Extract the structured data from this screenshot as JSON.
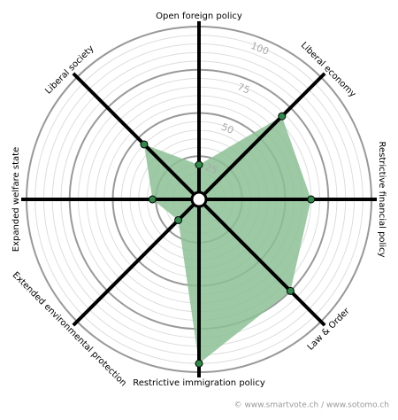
{
  "chart_data": {
    "type": "radar",
    "categories": [
      "Open foreign policy",
      "Liberal economy",
      "Restrictive financial policy",
      "Law & Order",
      "Restrictive immigration policy",
      "Extended environmental protection",
      "Expanded welfare state",
      "Liberal society"
    ],
    "values": [
      20,
      68,
      65,
      75,
      95,
      17,
      27,
      45
    ],
    "color": "#8cc195",
    "point_color": "#2f8a4a",
    "ylim": [
      0,
      100
    ],
    "yticks": [
      25,
      50,
      75,
      100
    ],
    "minor_ticks": [
      5,
      10,
      15,
      20,
      30,
      35,
      40,
      45,
      55,
      60,
      65,
      70,
      80,
      85,
      90,
      95
    ],
    "grid": true,
    "footer": "© www.smartvote.ch / www.sotomo.ch"
  }
}
